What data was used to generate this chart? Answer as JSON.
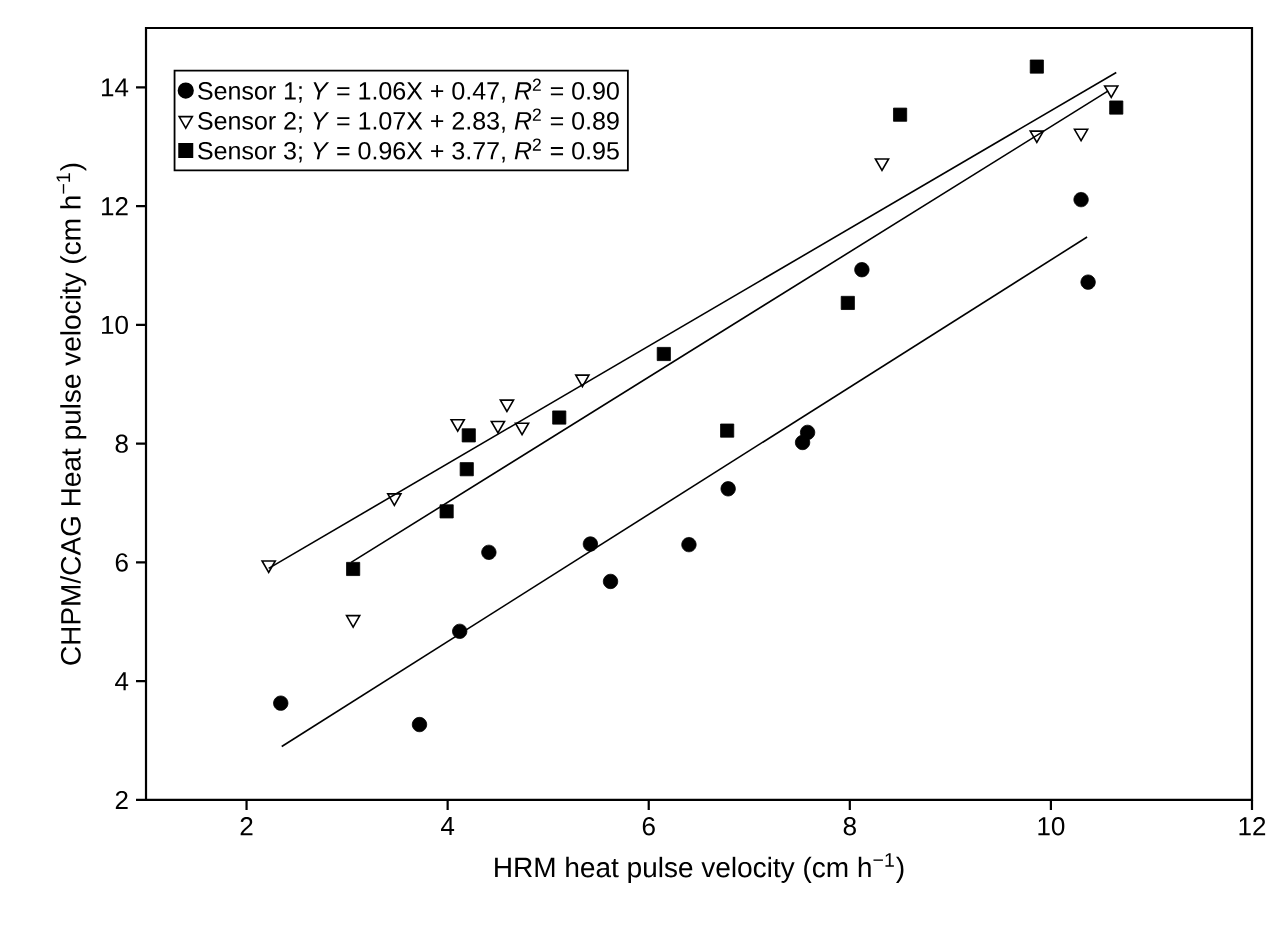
{
  "chart_data": {
    "type": "scatter",
    "xlabel": "HRM heat pulse velocity (cm h$^{−1}$)",
    "ylabel": "CHPM/CAG Heat pulse velocity (cm h$^{−1}$)",
    "xlim": [
      1,
      12
    ],
    "ylim": [
      2,
      15
    ],
    "xticks": [
      2,
      4,
      6,
      8,
      10,
      12
    ],
    "yticks": [
      2,
      4,
      6,
      8,
      10,
      12,
      14
    ],
    "legend": "top left",
    "grid": false,
    "series": [
      {
        "name": "Sensor 1; *Y* = 1.06X + 0.47, *R*$^{2}$ = 0.90",
        "marker": "circle",
        "color": "#000000",
        "x": [
          2.34,
          3.72,
          4.12,
          4.41,
          5.42,
          5.62,
          6.4,
          6.79,
          7.53,
          7.58,
          8.12,
          10.3,
          10.37
        ],
        "values": [
          3.63,
          3.27,
          4.84,
          6.17,
          6.31,
          5.68,
          6.3,
          7.24,
          8.02,
          8.19,
          10.93,
          12.11,
          10.72
        ]
      },
      {
        "name": "Sensor 2; *Y* = 1.07X + 2.83, *R*$^{2}$ = 0.89",
        "marker": "triangle",
        "color": "#000000",
        "x": [
          2.22,
          3.06,
          3.47,
          4.1,
          4.5,
          4.74,
          4.59,
          5.34,
          8.32,
          9.86,
          10.3,
          10.6
        ],
        "values": [
          5.96,
          5.04,
          7.09,
          8.34,
          8.31,
          8.28,
          8.67,
          9.09,
          12.73,
          13.2,
          13.23,
          13.96
        ]
      },
      {
        "name": "Sensor 3; *Y* = 0.96X + 3.77, *R*$^{2}$ = 0.95",
        "marker": "square",
        "color": "#000000",
        "x": [
          3.06,
          3.99,
          4.19,
          4.21,
          5.11,
          6.15,
          6.78,
          7.98,
          8.5,
          9.86,
          10.65
        ],
        "values": [
          5.89,
          6.86,
          7.57,
          8.14,
          8.44,
          9.51,
          8.22,
          10.37,
          13.54,
          14.35,
          13.66
        ]
      },
      {
        "type": "line",
        "color": "#000000",
        "x": [
          2.35,
          10.36
        ],
        "values": [
          2.9,
          11.48
        ]
      },
      {
        "type": "line",
        "color": "#000000",
        "x": [
          2.22,
          10.65
        ],
        "values": [
          5.9,
          14.25
        ]
      },
      {
        "type": "line",
        "color": "#000000",
        "x": [
          3.04,
          10.57
        ],
        "values": [
          6.0,
          13.94
        ]
      }
    ]
  }
}
